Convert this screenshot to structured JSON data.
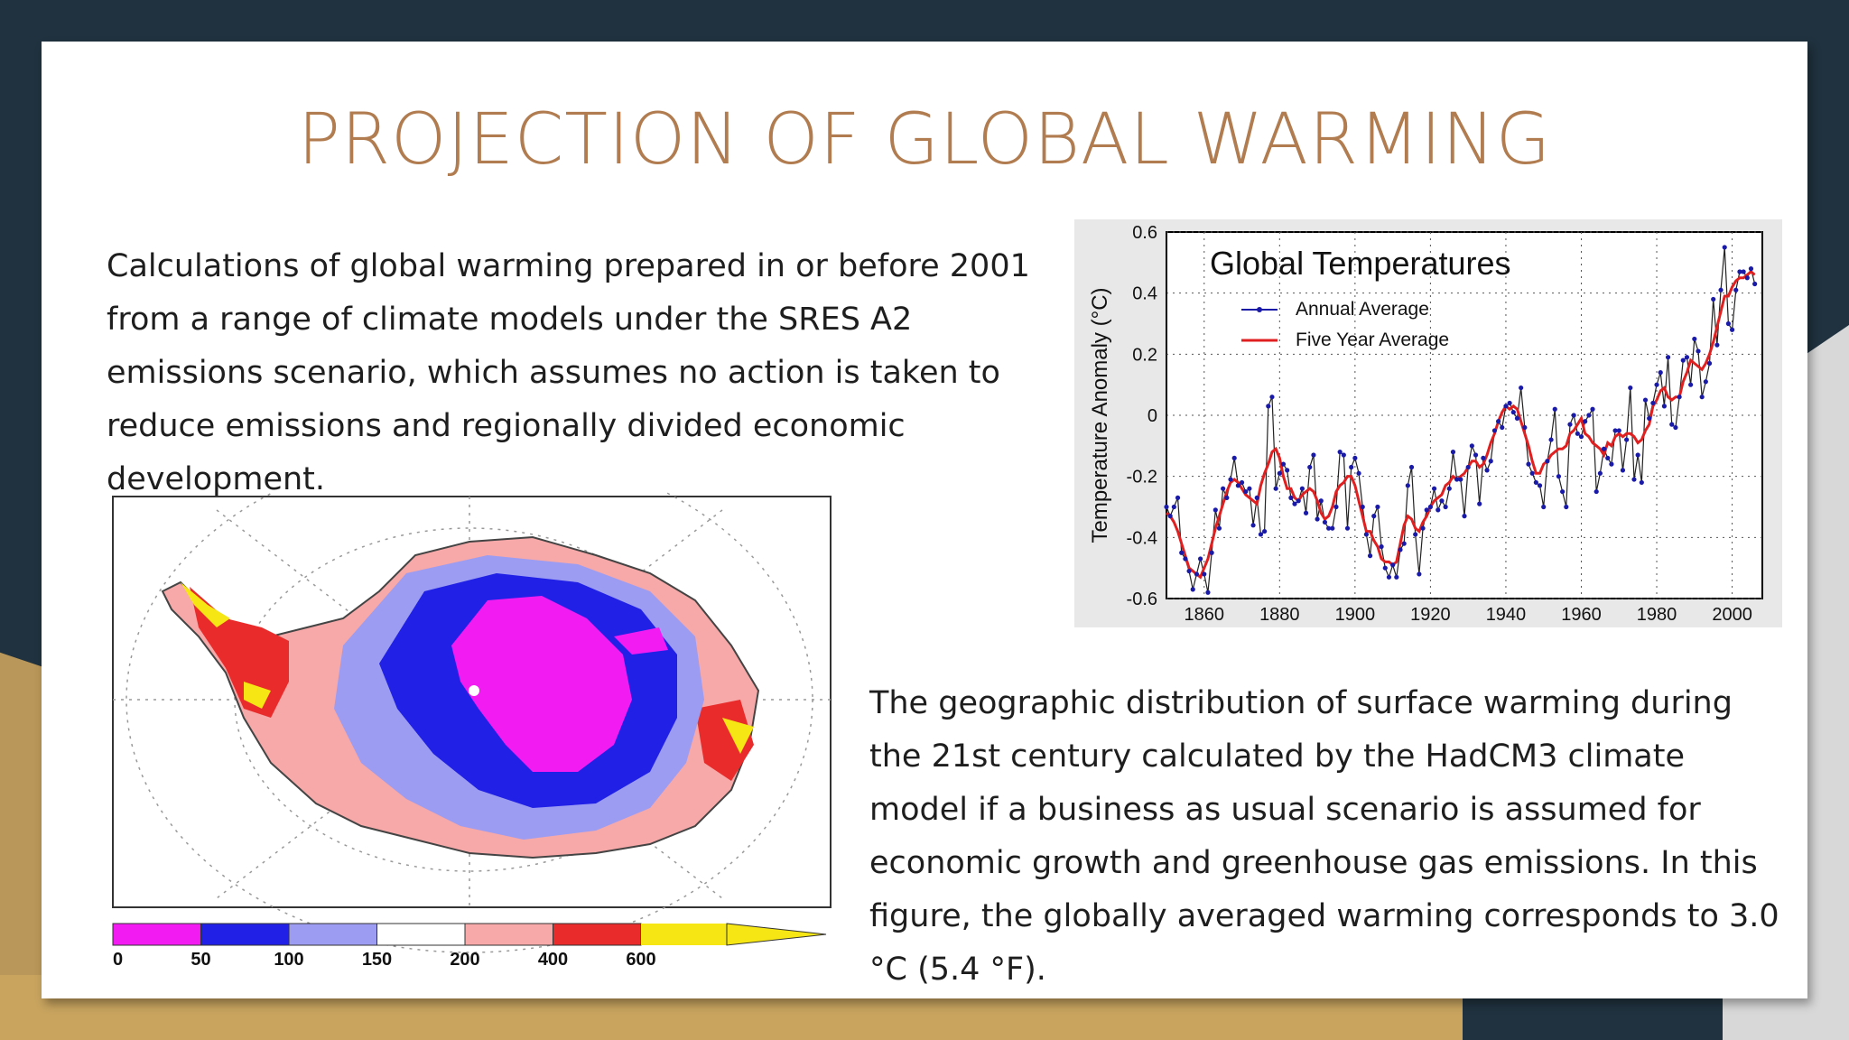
{
  "slide": {
    "title": "PROJECTION OF GLOBAL WARMING",
    "paragraph1": "Calculations of global warming prepared in or before 2001 from a range of climate models under the SRES A2 emissions scenario, which assumes no action is taken to reduce emissions and regionally divided economic development.",
    "paragraph2": "The geographic distribution of surface warming during the 21st century calculated by the HadCM3 climate model if a business as usual scenario is assumed for economic growth and greenhouse gas emissions. In this figure, the globally averaged warming corresponds to 3.0 °C (5.4 °F)."
  },
  "colors": {
    "title": "#b07c50",
    "annual_series": "#1a1aa8",
    "five_year_series": "#e02020"
  },
  "map": {
    "colorbar_labels": [
      "0",
      "50",
      "100",
      "150",
      "200",
      "400",
      "600"
    ],
    "colorbar_colors": [
      "#f21cf2",
      "#2020e6",
      "#9c9cf2",
      "#ffffff",
      "#f7a8a8",
      "#ea2b2b",
      "#f5e614"
    ]
  },
  "chart_data": {
    "type": "line",
    "title": "Global Temperatures",
    "xlabel": "",
    "ylabel": "Temperature Anomaly (°C)",
    "xlim": [
      1850,
      2008
    ],
    "ylim": [
      -0.6,
      0.6
    ],
    "xticks": [
      "1860",
      "1880",
      "1900",
      "1920",
      "1940",
      "1960",
      "1980",
      "2000"
    ],
    "yticks": [
      "0.6",
      "0.4",
      "0.2",
      "0",
      "-0.2",
      "-0.4",
      "-0.6"
    ],
    "grid": true,
    "legend": "top-left",
    "x": [
      1850,
      1851,
      1852,
      1853,
      1854,
      1855,
      1856,
      1857,
      1858,
      1859,
      1860,
      1861,
      1862,
      1863,
      1864,
      1865,
      1866,
      1867,
      1868,
      1869,
      1870,
      1871,
      1872,
      1873,
      1874,
      1875,
      1876,
      1877,
      1878,
      1879,
      1880,
      1881,
      1882,
      1883,
      1884,
      1885,
      1886,
      1887,
      1888,
      1889,
      1890,
      1891,
      1892,
      1893,
      1894,
      1895,
      1896,
      1897,
      1898,
      1899,
      1900,
      1901,
      1902,
      1903,
      1904,
      1905,
      1906,
      1907,
      1908,
      1909,
      1910,
      1911,
      1912,
      1913,
      1914,
      1915,
      1916,
      1917,
      1918,
      1919,
      1920,
      1921,
      1922,
      1923,
      1924,
      1925,
      1926,
      1927,
      1928,
      1929,
      1930,
      1931,
      1932,
      1933,
      1934,
      1935,
      1936,
      1937,
      1938,
      1939,
      1940,
      1941,
      1942,
      1943,
      1944,
      1945,
      1946,
      1947,
      1948,
      1949,
      1950,
      1951,
      1952,
      1953,
      1954,
      1955,
      1956,
      1957,
      1958,
      1959,
      1960,
      1961,
      1962,
      1963,
      1964,
      1965,
      1966,
      1967,
      1968,
      1969,
      1970,
      1971,
      1972,
      1973,
      1974,
      1975,
      1976,
      1977,
      1978,
      1979,
      1980,
      1981,
      1982,
      1983,
      1984,
      1985,
      1986,
      1987,
      1988,
      1989,
      1990,
      1991,
      1992,
      1993,
      1994,
      1995,
      1996,
      1997,
      1998,
      1999,
      2000,
      2001,
      2002,
      2003,
      2004,
      2005,
      2006
    ],
    "series": [
      {
        "name": "Annual Average",
        "values": [
          -0.3,
          -0.33,
          -0.3,
          -0.27,
          -0.45,
          -0.47,
          -0.51,
          -0.57,
          -0.52,
          -0.47,
          -0.52,
          -0.58,
          -0.45,
          -0.31,
          -0.37,
          -0.24,
          -0.27,
          -0.21,
          -0.14,
          -0.23,
          -0.22,
          -0.25,
          -0.24,
          -0.36,
          -0.27,
          -0.39,
          -0.38,
          0.03,
          0.06,
          -0.24,
          -0.19,
          -0.16,
          -0.18,
          -0.27,
          -0.29,
          -0.28,
          -0.24,
          -0.32,
          -0.17,
          -0.13,
          -0.34,
          -0.28,
          -0.35,
          -0.37,
          -0.37,
          -0.3,
          -0.12,
          -0.13,
          -0.37,
          -0.17,
          -0.14,
          -0.19,
          -0.3,
          -0.39,
          -0.46,
          -0.33,
          -0.3,
          -0.43,
          -0.5,
          -0.53,
          -0.49,
          -0.53,
          -0.44,
          -0.42,
          -0.23,
          -0.17,
          -0.39,
          -0.52,
          -0.37,
          -0.31,
          -0.3,
          -0.24,
          -0.31,
          -0.28,
          -0.3,
          -0.24,
          -0.12,
          -0.21,
          -0.21,
          -0.33,
          -0.17,
          -0.1,
          -0.13,
          -0.29,
          -0.14,
          -0.18,
          -0.15,
          -0.05,
          -0.02,
          -0.04,
          0.03,
          0.04,
          0.01,
          -0.01,
          0.09,
          -0.04,
          -0.16,
          -0.19,
          -0.22,
          -0.23,
          -0.3,
          -0.15,
          -0.08,
          0.02,
          -0.2,
          -0.25,
          -0.3,
          -0.03,
          0,
          -0.06,
          -0.07,
          -0.02,
          0,
          0.02,
          -0.25,
          -0.19,
          -0.11,
          -0.14,
          -0.16,
          -0.05,
          -0.05,
          -0.18,
          -0.08,
          0.09,
          -0.21,
          -0.13,
          -0.22,
          0.05,
          -0.01,
          0.04,
          0.1,
          0.14,
          0.03,
          0.19,
          -0.03,
          -0.04,
          0.06,
          0.18,
          0.19,
          0.1,
          0.25,
          0.21,
          0.06,
          0.11,
          0.17,
          0.38,
          0.23,
          0.41,
          0.55,
          0.3,
          0.28,
          0.41,
          0.47,
          0.47,
          0.45,
          0.48,
          0.43
        ]
      },
      {
        "name": "Five Year Average",
        "values": [
          -0.32,
          -0.33,
          -0.35,
          -0.38,
          -0.42,
          -0.46,
          -0.5,
          -0.51,
          -0.52,
          -0.53,
          -0.5,
          -0.47,
          -0.42,
          -0.37,
          -0.33,
          -0.29,
          -0.25,
          -0.22,
          -0.21,
          -0.22,
          -0.24,
          -0.26,
          -0.27,
          -0.28,
          -0.29,
          -0.23,
          -0.19,
          -0.16,
          -0.12,
          -0.11,
          -0.14,
          -0.2,
          -0.24,
          -0.24,
          -0.27,
          -0.28,
          -0.26,
          -0.25,
          -0.24,
          -0.25,
          -0.28,
          -0.32,
          -0.34,
          -0.33,
          -0.3,
          -0.25,
          -0.23,
          -0.22,
          -0.2,
          -0.2,
          -0.23,
          -0.28,
          -0.33,
          -0.38,
          -0.38,
          -0.41,
          -0.43,
          -0.47,
          -0.48,
          -0.48,
          -0.49,
          -0.48,
          -0.42,
          -0.36,
          -0.33,
          -0.34,
          -0.37,
          -0.38,
          -0.35,
          -0.33,
          -0.3,
          -0.28,
          -0.27,
          -0.26,
          -0.23,
          -0.22,
          -0.2,
          -0.21,
          -0.2,
          -0.19,
          -0.17,
          -0.15,
          -0.15,
          -0.17,
          -0.16,
          -0.13,
          -0.09,
          -0.06,
          -0.02,
          0.01,
          0.03,
          0.02,
          0.03,
          0.02,
          -0.02,
          -0.06,
          -0.1,
          -0.15,
          -0.19,
          -0.19,
          -0.16,
          -0.15,
          -0.13,
          -0.12,
          -0.11,
          -0.11,
          -0.1,
          -0.06,
          -0.05,
          -0.03,
          -0.01,
          -0.06,
          -0.07,
          -0.09,
          -0.1,
          -0.11,
          -0.13,
          -0.09,
          -0.1,
          -0.07,
          -0.06,
          -0.07,
          -0.06,
          -0.06,
          -0.07,
          -0.09,
          -0.08,
          -0.05,
          -0.03,
          0.03,
          0.05,
          0.08,
          0.09,
          0.06,
          0.05,
          0.06,
          0.06,
          0.11,
          0.14,
          0.18,
          0.17,
          0.16,
          0.15,
          0.17,
          0.2,
          0.24,
          0.29,
          0.34,
          0.39,
          0.39,
          0.42,
          0.44,
          0.45,
          0.45,
          0.46,
          0.47,
          0.46
        ]
      }
    ]
  }
}
